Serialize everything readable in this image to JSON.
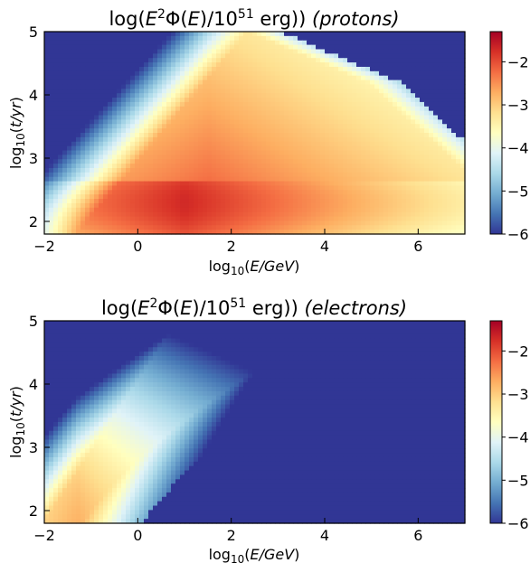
{
  "chart_data": [
    {
      "type": "heatmap",
      "title": {
        "pre": "log(",
        "E1": "E",
        "sq": "2",
        "mid": "Φ(",
        "E2": "E",
        "div": ")/10",
        "exp": "51",
        "post": " erg)) ",
        "species": "(protons)"
      },
      "xlabel": {
        "pre": "log",
        "sub": "10",
        "open": "(",
        "var": "E/GeV",
        "close": ")"
      },
      "ylabel": {
        "pre": "log",
        "sub": "10",
        "open": "(",
        "var": "t/yr",
        "close": ")"
      },
      "xlim": [
        -2,
        7
      ],
      "ylim": [
        1.8,
        5
      ],
      "x_ticks": [
        "−2",
        "0",
        "2",
        "4",
        "6"
      ],
      "y_ticks": [
        "2",
        "3",
        "4",
        "5"
      ],
      "colorbar": {
        "range": [
          -6,
          -1.3
        ],
        "ticks": [
          "−2",
          "−3",
          "−4",
          "−5",
          "−6"
        ],
        "colormap": "RdYlBu_r"
      },
      "floor_value": -6,
      "description_points": [
        {
          "E": 1.0,
          "t": 2.3,
          "value": -1.6
        },
        {
          "E": 3.0,
          "t": 2.3,
          "value": -2.2
        },
        {
          "E": 6.0,
          "t": 2.2,
          "value": -2.9
        },
        {
          "E": 1.0,
          "t": 4.0,
          "value": -3.0
        },
        {
          "E": -1.5,
          "t": 4.0,
          "value": -5.2
        },
        {
          "E": 6.5,
          "t": 4.5,
          "value": -6.0
        }
      ]
    },
    {
      "type": "heatmap",
      "title": {
        "pre": "log(",
        "E1": "E",
        "sq": "2",
        "mid": "Φ(",
        "E2": "E",
        "div": ")/10",
        "exp": "51",
        "post": " erg)) ",
        "species": "(electrons)"
      },
      "xlabel": {
        "pre": "log",
        "sub": "10",
        "open": "(",
        "var": "E/GeV",
        "close": ")"
      },
      "ylabel": {
        "pre": "log",
        "sub": "10",
        "open": "(",
        "var": "t/yr",
        "close": ")"
      },
      "xlim": [
        -2,
        7
      ],
      "ylim": [
        1.8,
        5
      ],
      "x_ticks": [
        "−2",
        "0",
        "2",
        "4",
        "6"
      ],
      "y_ticks": [
        "2",
        "3",
        "4",
        "5"
      ],
      "colorbar": {
        "range": [
          -6,
          -1.3
        ],
        "ticks": [
          "−2",
          "−3",
          "−4",
          "−5",
          "−6"
        ],
        "colormap": "RdYlBu_r"
      },
      "floor_value": -6,
      "description_points": [
        {
          "E": -1.2,
          "t": 2.6,
          "value": -3.2
        },
        {
          "E": -1.0,
          "t": 3.0,
          "value": -3.3
        },
        {
          "E": 0.0,
          "t": 3.5,
          "value": -4.2
        },
        {
          "E": 1.0,
          "t": 4.0,
          "value": -4.8
        },
        {
          "E": 4.0,
          "t": 3.0,
          "value": -6.0
        }
      ]
    }
  ]
}
